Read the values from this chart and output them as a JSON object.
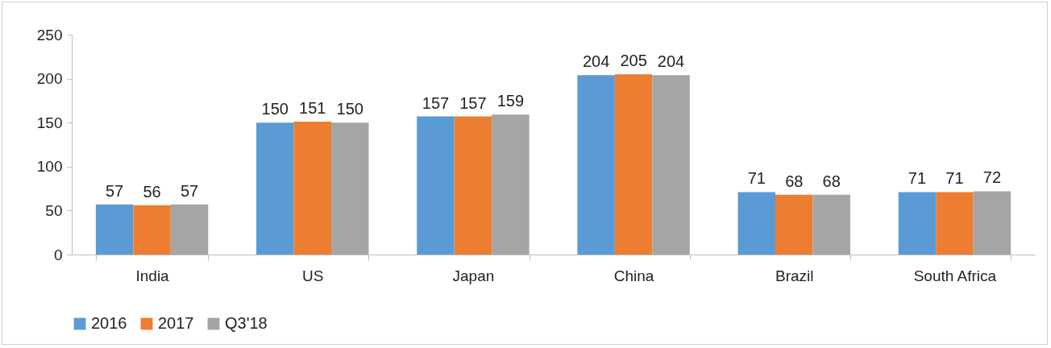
{
  "chart_data": {
    "type": "bar",
    "categories": [
      "India",
      "US",
      "Japan",
      "China",
      "Brazil",
      "South Africa"
    ],
    "series": [
      {
        "name": "2016",
        "color": "#5b9bd5",
        "values": [
          57,
          150,
          157,
          204,
          71,
          71
        ]
      },
      {
        "name": "2017",
        "color": "#ed7d31",
        "values": [
          56,
          151,
          157,
          205,
          68,
          71
        ]
      },
      {
        "name": "Q3'18",
        "color": "#a5a5a5",
        "values": [
          57,
          150,
          159,
          204,
          68,
          72
        ]
      }
    ],
    "ylim": [
      0,
      250
    ],
    "yticks": [
      0,
      50,
      100,
      150,
      200,
      250
    ],
    "grid": false,
    "legend": "bottom",
    "data_labels": true
  }
}
